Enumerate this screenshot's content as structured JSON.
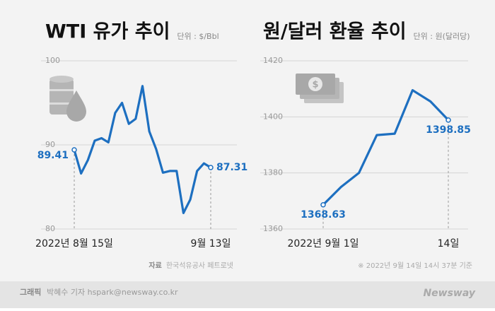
{
  "chart_data": [
    {
      "type": "line",
      "title": "WTI 유가 추이",
      "unit": "단위 : $/Bbl",
      "categories": [
        "2022년 8월 15일",
        null,
        null,
        null,
        null,
        null,
        null,
        null,
        null,
        null,
        null,
        null,
        null,
        null,
        null,
        null,
        null,
        null,
        null,
        null,
        "9월 13일"
      ],
      "series": [
        {
          "name": "WTI",
          "color": "#1d6fc0",
          "values": [
            89.41,
            86.6,
            88.2,
            90.5,
            90.8,
            90.3,
            93.8,
            95.0,
            92.5,
            93.1,
            97.0,
            91.6,
            89.5,
            86.7,
            86.9,
            86.9,
            81.9,
            83.5,
            86.9,
            87.8,
            87.31
          ]
        }
      ],
      "ylim": [
        80,
        100
      ],
      "yticks": [
        80,
        90,
        100
      ],
      "grid": true,
      "source": {
        "label": "자료",
        "text": "한국석유공사 페트로넷"
      }
    },
    {
      "type": "line",
      "title": "원/달러 환율 추이",
      "unit": "단위 : 원(달러당)",
      "categories": [
        "2022년 9월 1일",
        null,
        null,
        null,
        null,
        null,
        null,
        "14일"
      ],
      "series": [
        {
          "name": "원/달러",
          "color": "#1d6fc0",
          "values": [
            1368.63,
            1375,
            1380,
            1393.5,
            1394,
            1409.5,
            1405.5,
            1398.85
          ]
        }
      ],
      "ylim": [
        1360,
        1420
      ],
      "yticks": [
        1360,
        1380,
        1400,
        1420
      ],
      "grid": true,
      "note": "※  2022년 9월 14일 14시 37분 기준"
    }
  ],
  "footer": {
    "label": "그래픽",
    "credit": "박혜수 기자 hspark@newsway.co.kr",
    "brand": "Newsway"
  }
}
